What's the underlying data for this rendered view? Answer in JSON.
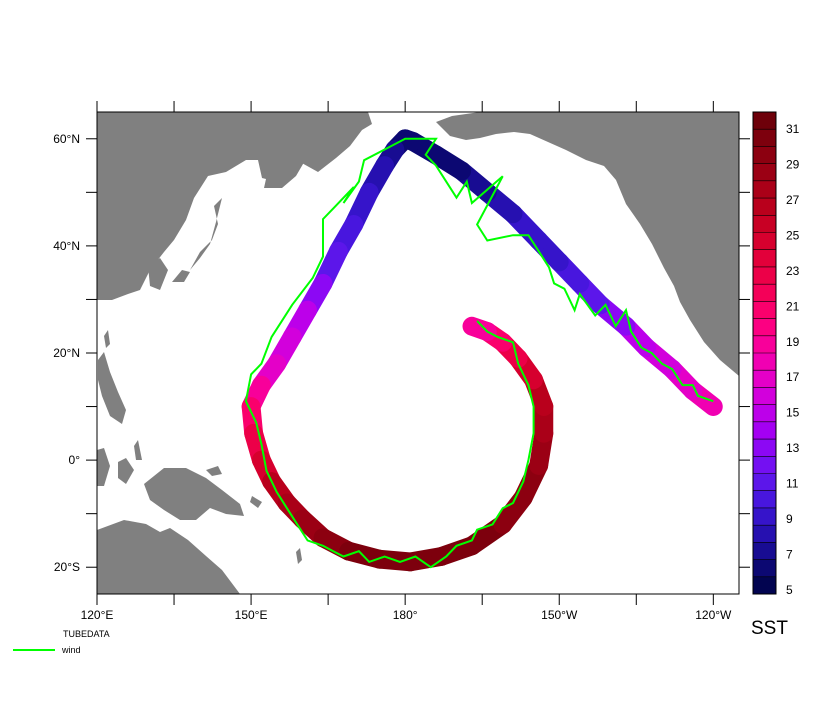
{
  "map": {
    "lon_range": [
      120,
      245
    ],
    "lat_range": [
      -25,
      65
    ],
    "land_color": "#808080",
    "ocean_color": "#ffffff",
    "lon_ticks": [
      {
        "value": 120,
        "label": "120°E"
      },
      {
        "value": 135,
        "label": ""
      },
      {
        "value": 150,
        "label": "150°E"
      },
      {
        "value": 165,
        "label": ""
      },
      {
        "value": 180,
        "label": "180°"
      },
      {
        "value": 195,
        "label": ""
      },
      {
        "value": 210,
        "label": "150°W"
      },
      {
        "value": 225,
        "label": ""
      },
      {
        "value": 240,
        "label": "120°W"
      },
      {
        "value": 255,
        "label": ""
      }
    ],
    "lat_ticks": [
      {
        "value": 60,
        "label": "60°N"
      },
      {
        "value": 50,
        "label": ""
      },
      {
        "value": 40,
        "label": "40°N"
      },
      {
        "value": 30,
        "label": ""
      },
      {
        "value": 20,
        "label": "20°N"
      },
      {
        "value": 10,
        "label": ""
      },
      {
        "value": 0,
        "label": "0°"
      },
      {
        "value": -10,
        "label": ""
      },
      {
        "value": -20,
        "label": "20°S"
      }
    ]
  },
  "track": {
    "width_deg": 1.6,
    "points": [
      [
        240,
        10,
        18
      ],
      [
        236,
        13,
        17
      ],
      [
        232,
        17,
        16
      ],
      [
        227,
        21,
        15
      ],
      [
        223,
        25,
        14
      ],
      [
        218,
        29,
        12
      ],
      [
        214,
        33,
        11
      ],
      [
        210,
        37,
        10
      ],
      [
        206,
        41,
        9
      ],
      [
        201,
        46,
        9
      ],
      [
        196,
        50,
        8
      ],
      [
        191,
        54,
        7
      ],
      [
        186,
        57,
        6
      ],
      [
        181.5,
        59.5,
        6
      ],
      [
        180,
        60,
        6
      ],
      [
        178,
        58,
        7
      ],
      [
        176,
        55,
        8
      ],
      [
        173,
        50,
        9
      ],
      [
        170,
        44,
        10
      ],
      [
        167,
        39,
        11
      ],
      [
        164,
        33,
        12
      ],
      [
        161,
        28,
        14
      ],
      [
        158,
        23,
        15
      ],
      [
        155,
        18,
        16
      ],
      [
        152,
        14,
        18
      ],
      [
        150,
        10,
        19
      ],
      [
        150.5,
        5,
        21
      ],
      [
        152,
        0,
        23
      ],
      [
        154,
        -4,
        25
      ],
      [
        157,
        -8,
        26
      ],
      [
        160,
        -11,
        27
      ],
      [
        164,
        -14.5,
        28
      ],
      [
        169,
        -17,
        29
      ],
      [
        175,
        -18.5,
        30
      ],
      [
        181,
        -19,
        30
      ],
      [
        187,
        -18,
        30
      ],
      [
        193,
        -16,
        30
      ],
      [
        199,
        -12,
        29
      ],
      [
        203,
        -7,
        29
      ],
      [
        206,
        -1,
        28
      ],
      [
        207,
        5,
        27
      ],
      [
        207,
        10,
        26
      ],
      [
        205,
        15,
        25
      ],
      [
        202,
        19,
        23
      ],
      [
        199,
        22,
        21
      ],
      [
        196,
        24,
        19
      ],
      [
        193,
        25,
        18
      ]
    ]
  },
  "wind": {
    "color": "#00ff00",
    "points": [
      [
        240,
        11
      ],
      [
        237,
        12
      ],
      [
        236,
        14
      ],
      [
        234,
        14
      ],
      [
        232,
        17
      ],
      [
        230,
        18
      ],
      [
        228,
        20
      ],
      [
        226,
        21
      ],
      [
        224,
        24
      ],
      [
        223,
        28
      ],
      [
        221,
        25
      ],
      [
        219,
        29
      ],
      [
        217,
        27
      ],
      [
        214,
        31
      ],
      [
        213,
        28
      ],
      [
        211,
        32
      ],
      [
        209,
        33
      ],
      [
        208,
        36
      ],
      [
        206,
        39
      ],
      [
        204,
        42
      ],
      [
        201,
        42
      ],
      [
        196,
        41
      ],
      [
        194,
        44
      ],
      [
        199,
        53
      ],
      [
        193,
        48
      ],
      [
        192,
        52
      ],
      [
        190,
        49
      ],
      [
        188,
        52
      ],
      [
        186,
        55
      ],
      [
        184,
        57
      ],
      [
        186,
        60
      ],
      [
        184,
        60
      ],
      [
        180,
        60
      ],
      [
        176,
        58
      ],
      [
        172,
        56
      ],
      [
        171,
        52
      ],
      [
        168,
        48
      ],
      [
        170,
        51
      ],
      [
        166,
        47
      ],
      [
        164,
        45
      ],
      [
        164,
        42
      ],
      [
        164,
        38
      ],
      [
        162,
        34
      ],
      [
        158,
        29
      ],
      [
        156,
        26
      ],
      [
        154,
        23
      ],
      [
        152,
        18
      ],
      [
        150,
        16
      ],
      [
        149,
        11
      ],
      [
        151,
        7
      ],
      [
        152,
        3
      ],
      [
        153,
        -2
      ],
      [
        155,
        -6
      ],
      [
        157,
        -9
      ],
      [
        159,
        -12
      ],
      [
        161,
        -15
      ],
      [
        164,
        -16
      ],
      [
        166,
        -17
      ],
      [
        168,
        -18
      ],
      [
        171,
        -17
      ],
      [
        173,
        -19
      ],
      [
        176,
        -18
      ],
      [
        179,
        -19
      ],
      [
        182,
        -18
      ],
      [
        185,
        -20
      ],
      [
        188,
        -18
      ],
      [
        190,
        -16
      ],
      [
        193,
        -15
      ],
      [
        194,
        -13
      ],
      [
        197,
        -12
      ],
      [
        199,
        -9
      ],
      [
        201,
        -8
      ],
      [
        203,
        -4
      ],
      [
        204,
        0
      ],
      [
        205,
        5
      ],
      [
        205,
        10
      ],
      [
        204,
        14
      ],
      [
        202,
        18
      ],
      [
        201,
        22
      ],
      [
        198,
        23
      ],
      [
        196,
        24
      ],
      [
        194,
        26
      ]
    ]
  },
  "colorbar": {
    "title": "SST",
    "min": 5,
    "max": 31,
    "labels": [
      "31",
      "29",
      "27",
      "25",
      "23",
      "21",
      "19",
      "17",
      "15",
      "13",
      "11",
      "9",
      "7",
      "5"
    ],
    "colors": [
      "#6e000a",
      "#7d000d",
      "#8c0010",
      "#9b0014",
      "#aa0018",
      "#b9001c",
      "#c80024",
      "#d6002e",
      "#e2003a",
      "#ec0048",
      "#f40058",
      "#fa006c",
      "#fc0082",
      "#f8009a",
      "#f000b2",
      "#e400c8",
      "#d200dc",
      "#bc00ea",
      "#a400f2",
      "#8c08f4",
      "#7410f2",
      "#5c16ea",
      "#4816de",
      "#3614ca",
      "#2610b0",
      "#180c92",
      "#0c0872",
      "#020450"
    ]
  },
  "legend": {
    "title": "TUBEDATA",
    "entry": "wind",
    "color": "#00ff00"
  }
}
